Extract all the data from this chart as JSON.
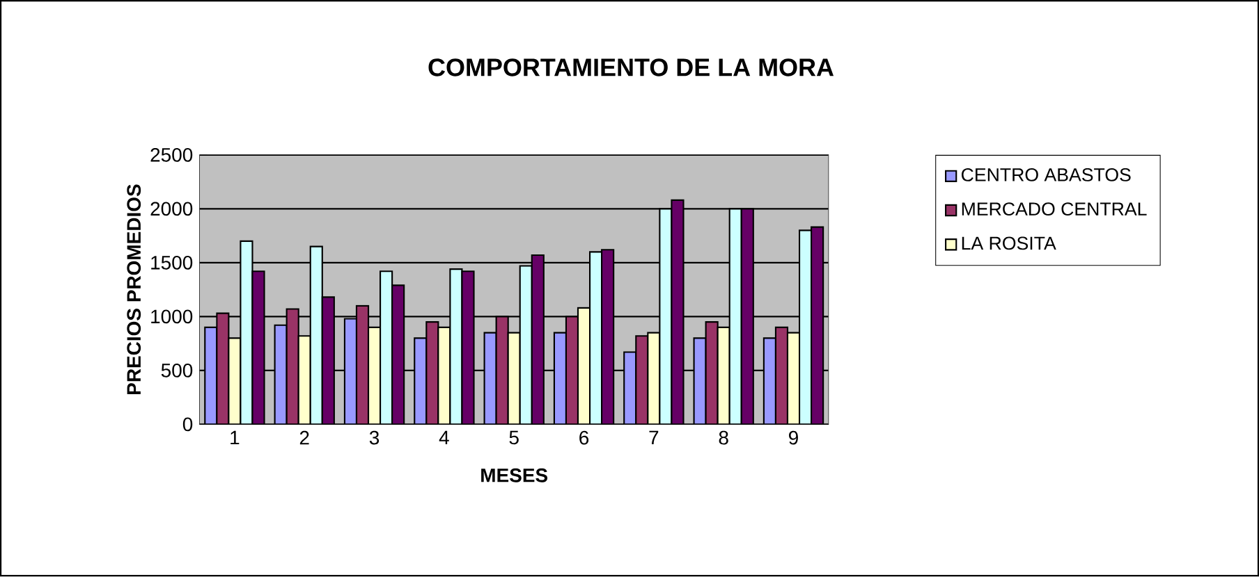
{
  "chart_data": {
    "type": "bar",
    "title": "COMPORTAMIENTO DE LA MORA",
    "xlabel": "MESES",
    "ylabel": "PRECIOS PROMEDIOS",
    "categories": [
      "1",
      "2",
      "3",
      "4",
      "5",
      "6",
      "7",
      "8",
      "9"
    ],
    "series": [
      {
        "name": "CENTRO ABASTOS",
        "color": "#9999ff",
        "values": [
          900,
          920,
          980,
          800,
          850,
          850,
          670,
          800,
          800
        ]
      },
      {
        "name": "MERCADO CENTRAL",
        "color": "#993366",
        "values": [
          1030,
          1070,
          1100,
          950,
          1000,
          1000,
          820,
          950,
          900
        ]
      },
      {
        "name": "LA ROSITA",
        "color": "#ffffcc",
        "values": [
          800,
          820,
          900,
          900,
          850,
          1080,
          850,
          900,
          850
        ]
      },
      {
        "color": "#ccffff",
        "values": [
          1700,
          1650,
          1420,
          1440,
          1470,
          1600,
          2000,
          2000,
          1800
        ]
      },
      {
        "color": "#660066",
        "values": [
          1420,
          1180,
          1290,
          1420,
          1570,
          1620,
          2080,
          2000,
          1830
        ]
      }
    ],
    "ylim": [
      0,
      2500
    ],
    "yticks": [
      0,
      500,
      1000,
      1500,
      2000,
      2500
    ],
    "grid": "y",
    "legend": "right"
  }
}
